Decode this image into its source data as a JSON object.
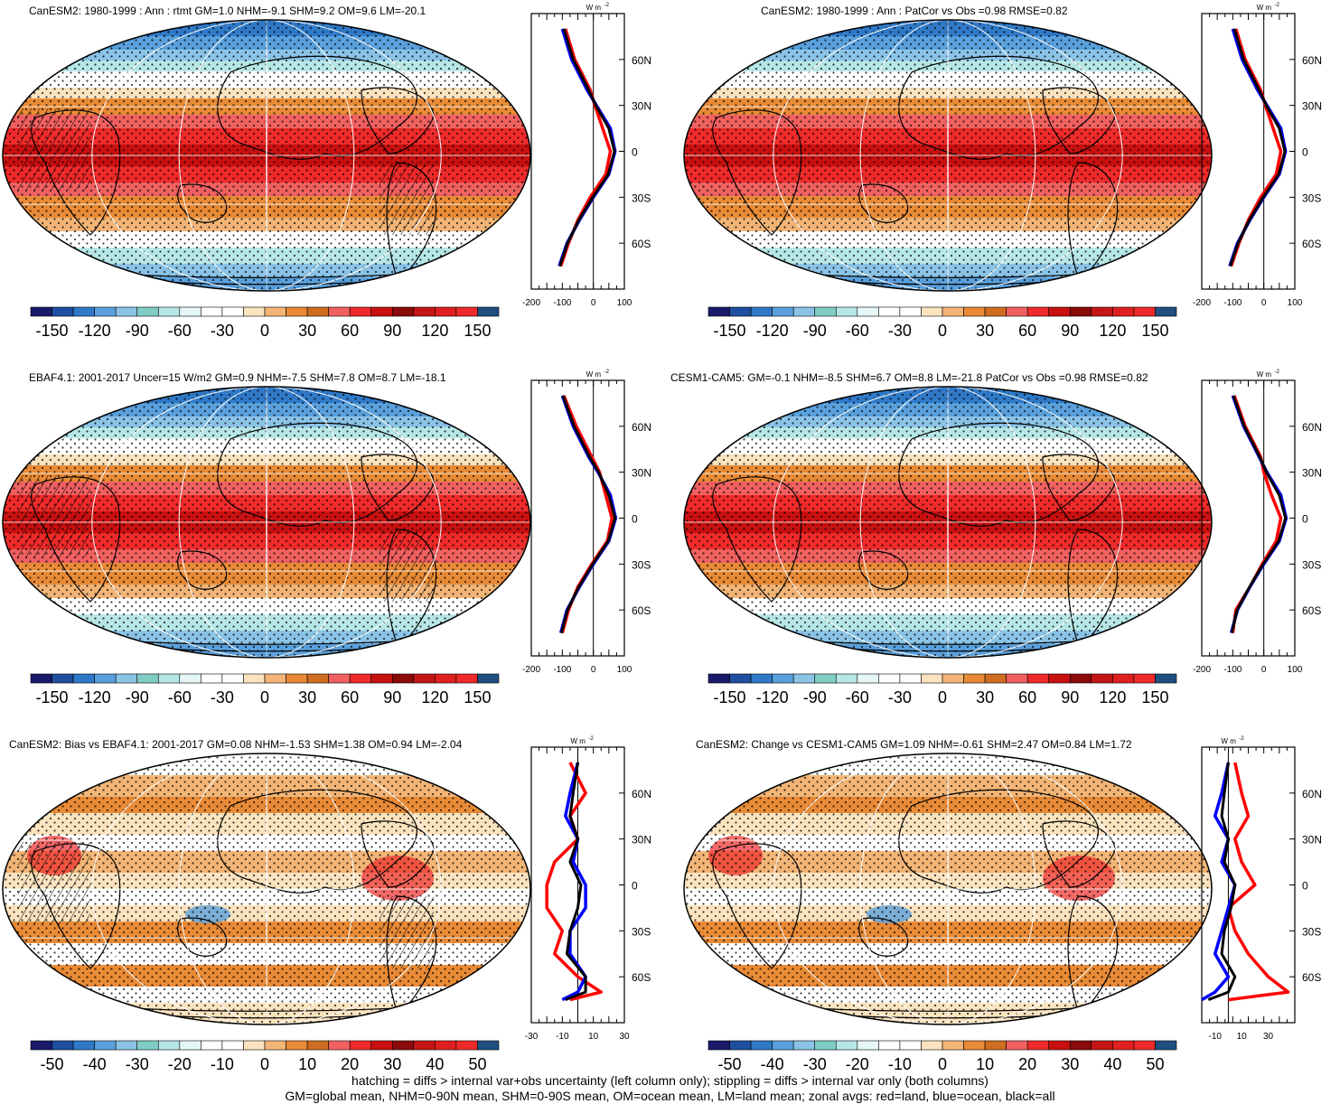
{
  "panels": [
    {
      "title": "CanESM2: 1980-1999 : Ann : rtmt GM=1.0 NHM=-9.1 SHM=9.2 OM=9.6 LM=-20.1",
      "kind": "mean",
      "hatch": true
    },
    {
      "title": "CanESM2: 1980-1999 : Ann : PatCor vs Obs =0.98 RMSE=0.82",
      "kind": "mean",
      "hatch": false
    },
    {
      "title": "EBAF4.1: 2001-2017 Uncer=15 W/m2 GM=0.9 NHM=-7.5 SHM=7.8 OM=8.7 LM=-18.1",
      "kind": "mean",
      "hatch": true
    },
    {
      "title": "CESM1-CAM5: GM=-0.1 NHM=-8.5 SHM=6.7 OM=8.8 LM=-21.8 PatCor vs Obs =0.98 RMSE=0.82",
      "kind": "mean",
      "hatch": false
    },
    {
      "title": "CanESM2: Bias vs EBAF4.1: 2001-2017 GM=0.08 NHM=-1.53 SHM=1.38 OM=0.94 LM=-2.04",
      "kind": "diff",
      "hatch": true
    },
    {
      "title": "CanESM2: Change vs CESM1-CAM5 GM=1.09 NHM=-0.61 SHM=2.47 OM=0.84 LM=1.72",
      "kind": "diff",
      "hatch": false
    }
  ],
  "zonal_unit": "W m",
  "zonal_unit_sup": "-2",
  "lat_ticks": [
    "60N",
    "30N",
    "0",
    "30S",
    "60S"
  ],
  "colorbar_mean": {
    "labels": [
      "-150",
      "-120",
      "-90",
      "-60",
      "-30",
      "0",
      "30",
      "60",
      "90",
      "120",
      "150"
    ],
    "colors": [
      "#1a1a6b",
      "#1f4fa0",
      "#2f79c8",
      "#5aa0dc",
      "#8bc3e6",
      "#7fcdc4",
      "#b7e6e6",
      "#e4f6f6",
      "#ffffff",
      "#ffffff",
      "#fbe3bf",
      "#f2b577",
      "#e88a36",
      "#cf6d22",
      "#f06060",
      "#ee2a2a",
      "#c81010",
      "#8b0a0a",
      "#c41616",
      "#e02020",
      "#ee2a2a",
      "#1f4f80"
    ]
  },
  "colorbar_diff": {
    "labels": [
      "-50",
      "-40",
      "-30",
      "-20",
      "-10",
      "0",
      "10",
      "20",
      "30",
      "40",
      "50"
    ],
    "colors": [
      "#1a1a6b",
      "#1f4fa0",
      "#2f79c8",
      "#5aa0dc",
      "#8bc3e6",
      "#7fcdc4",
      "#b7e6e6",
      "#e4f6f6",
      "#ffffff",
      "#ffffff",
      "#fbe3bf",
      "#f2b577",
      "#e88a36",
      "#cf6d22",
      "#f06060",
      "#ee2a2a",
      "#c81010",
      "#8b0a0a",
      "#c41616",
      "#e02020",
      "#ee2a2a",
      "#1f4f80"
    ]
  },
  "chart_data": [
    {
      "type": "heatmap",
      "title": "CanESM2: 1980-1999 : Ann : rtmt GM=1.0 NHM=-9.1 SHM=9.2 OM=9.6 LM=-20.1",
      "colorbar_range": [
        -150,
        150
      ],
      "zonal_mean": {
        "xlim": [
          -200,
          100
        ],
        "xticks": [
          "-200",
          "-100",
          "0",
          "100"
        ],
        "lat": [
          80,
          60,
          40,
          30,
          15,
          0,
          -15,
          -30,
          -45,
          -60,
          -75
        ],
        "series": [
          {
            "color": "red",
            "values": [
              -90,
              -60,
              -10,
              5,
              30,
              55,
              40,
              -10,
              -50,
              -80,
              -105
            ]
          },
          {
            "color": "blue",
            "values": [
              -100,
              -70,
              -20,
              10,
              55,
              70,
              50,
              0,
              -45,
              -85,
              -110
            ]
          },
          {
            "color": "black",
            "values": [
              -95,
              -65,
              -15,
              8,
              50,
              68,
              48,
              -2,
              -47,
              -83,
              -108
            ]
          }
        ]
      }
    },
    {
      "type": "heatmap",
      "title": "CanESM2: 1980-1999 : Ann : PatCor vs Obs =0.98 RMSE=0.82",
      "colorbar_range": [
        -150,
        150
      ],
      "zonal_mean": {
        "xlim": [
          -200,
          100
        ],
        "xticks": [
          "-200",
          "-100",
          "0",
          "100"
        ],
        "lat": [
          80,
          60,
          40,
          30,
          15,
          0,
          -15,
          -30,
          -45,
          -60,
          -75
        ],
        "series": [
          {
            "color": "red",
            "values": [
              -90,
              -60,
              -10,
              5,
              30,
              55,
              40,
              -10,
              -50,
              -80,
              -105
            ]
          },
          {
            "color": "blue",
            "values": [
              -100,
              -70,
              -20,
              10,
              55,
              70,
              50,
              0,
              -45,
              -85,
              -110
            ]
          },
          {
            "color": "black",
            "values": [
              -95,
              -65,
              -15,
              8,
              50,
              68,
              48,
              -2,
              -47,
              -83,
              -108
            ]
          }
        ]
      }
    },
    {
      "type": "heatmap",
      "title": "EBAF4.1: 2001-2017 Uncer=15 W/m2 GM=0.9 NHM=-7.5 SHM=7.8 OM=8.7 LM=-18.1",
      "colorbar_range": [
        -150,
        150
      ],
      "zonal_mean": {
        "xlim": [
          -200,
          100
        ],
        "xticks": [
          "-200",
          "-100",
          "0",
          "100"
        ],
        "lat": [
          80,
          60,
          40,
          30,
          15,
          0,
          -15,
          -30,
          -45,
          -60,
          -75
        ],
        "series": [
          {
            "color": "red",
            "values": [
              -95,
              -55,
              -5,
              20,
              40,
              60,
              45,
              -5,
              -50,
              -80,
              -100
            ]
          },
          {
            "color": "blue",
            "values": [
              -100,
              -65,
              -15,
              15,
              55,
              72,
              50,
              0,
              -45,
              -85,
              -105
            ]
          },
          {
            "color": "black",
            "values": [
              -98,
              -62,
              -12,
              17,
              50,
              70,
              48,
              -2,
              -47,
              -83,
              -103
            ]
          }
        ]
      }
    },
    {
      "type": "heatmap",
      "title": "CESM1-CAM5: GM=-0.1 NHM=-8.5 SHM=6.7 OM=8.8 LM=-21.8 PatCor vs Obs =0.98 RMSE=0.82",
      "colorbar_range": [
        -150,
        150
      ],
      "zonal_mean": {
        "xlim": [
          -200,
          100
        ],
        "xticks": [
          "-200",
          "-100",
          "0",
          "100"
        ],
        "lat": [
          80,
          60,
          40,
          30,
          15,
          0,
          -15,
          -30,
          -45,
          -60,
          -75
        ],
        "series": [
          {
            "color": "red",
            "values": [
              -95,
              -60,
              -10,
              0,
              25,
              55,
              40,
              -5,
              -45,
              -90,
              -100
            ]
          },
          {
            "color": "blue",
            "values": [
              -100,
              -65,
              -15,
              10,
              55,
              72,
              50,
              0,
              -45,
              -85,
              -105
            ]
          },
          {
            "color": "black",
            "values": [
              -98,
              -63,
              -13,
              8,
              50,
              70,
              48,
              -2,
              -46,
              -86,
              -103
            ]
          }
        ]
      }
    },
    {
      "type": "heatmap",
      "title": "CanESM2: Bias vs EBAF4.1: 2001-2017 GM=0.08 NHM=-1.53 SHM=1.38 OM=0.94 LM=-2.04",
      "colorbar_range": [
        -50,
        50
      ],
      "zonal_mean": {
        "xlim": [
          -30,
          30
        ],
        "xticks": [
          "-30",
          "-10",
          "10",
          "30"
        ],
        "lat": [
          80,
          60,
          45,
          30,
          15,
          0,
          -15,
          -30,
          -45,
          -60,
          -70,
          -75
        ],
        "series": [
          {
            "color": "red",
            "values": [
              -5,
              5,
              -5,
              0,
              -15,
              -20,
              -20,
              -10,
              -15,
              0,
              15,
              -5
            ]
          },
          {
            "color": "blue",
            "values": [
              0,
              -5,
              -8,
              0,
              -3,
              5,
              5,
              -5,
              -5,
              5,
              0,
              -10
            ]
          },
          {
            "color": "black",
            "values": [
              0,
              -3,
              -5,
              0,
              -5,
              2,
              0,
              -5,
              -7,
              5,
              5,
              -8
            ]
          }
        ]
      }
    },
    {
      "type": "heatmap",
      "title": "CanESM2: Change vs CESM1-CAM5 GM=1.09 NHM=-0.61 SHM=2.47 OM=0.84 LM=1.72",
      "colorbar_range": [
        -50,
        50
      ],
      "zonal_mean": {
        "xlim": [
          -20,
          50
        ],
        "xticks": [
          "-10",
          "10",
          "30"
        ],
        "lat": [
          80,
          60,
          45,
          30,
          15,
          0,
          -15,
          -30,
          -45,
          -60,
          -70,
          -75
        ],
        "series": [
          {
            "color": "red",
            "values": [
              5,
              10,
              15,
              5,
              10,
              20,
              0,
              5,
              15,
              30,
              45,
              0
            ]
          },
          {
            "color": "blue",
            "values": [
              0,
              -5,
              -10,
              0,
              -5,
              5,
              0,
              -5,
              -10,
              0,
              -10,
              -20
            ]
          },
          {
            "color": "black",
            "values": [
              0,
              -3,
              -5,
              0,
              -3,
              5,
              2,
              -3,
              -5,
              5,
              0,
              -15
            ]
          }
        ]
      }
    }
  ],
  "footer": {
    "line1": "hatching = diffs > internal var+obs uncertainty (left column only); stippling = diffs > internal var only (both columns)",
    "line2": "GM=global mean, NHM=0-90N mean, SHM=0-90S mean, OM=ocean mean, LM=land mean; zonal avgs: red=land, blue=ocean, black=all"
  }
}
